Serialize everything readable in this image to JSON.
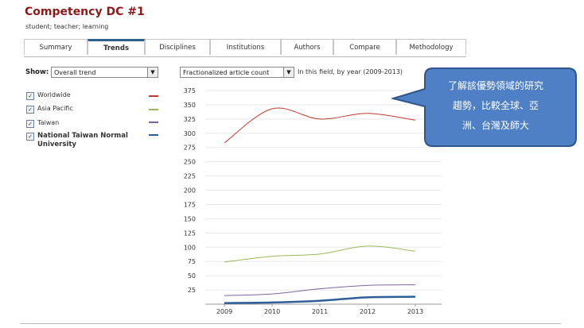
{
  "header": {
    "title": "Competency DC #1",
    "keywords": "student; teacher; learning"
  },
  "tabs": [
    {
      "label": "Summary"
    },
    {
      "label": "Trends"
    },
    {
      "label": "Disciplines"
    },
    {
      "label": "Institutions"
    },
    {
      "label": "Authors"
    },
    {
      "label": "Compare"
    },
    {
      "label": "Methodology"
    }
  ],
  "controls": {
    "show_label": "Show:",
    "show_value": "Overall trend",
    "metric_value": "Fractionalized article count",
    "subtitle": "In this field, by year (2009-2013)"
  },
  "legend": [
    {
      "label": "Worldwide",
      "color": "#c0392b",
      "checked": "✓"
    },
    {
      "label": "Asia Pacific",
      "color": "#9aba59",
      "checked": "✓"
    },
    {
      "label": "Taiwan",
      "color": "#8064a2",
      "checked": "✓"
    },
    {
      "label": "National Taiwan Normal University",
      "color": "#2e5f9a",
      "checked": "✓"
    }
  ],
  "callout": {
    "line1": "了解該優勢領域的研究",
    "line2": "趨勢，比較全球、亞",
    "line3": "洲、台灣及師大",
    "fill": "#4f7fc4"
  },
  "chart_data": {
    "type": "line",
    "x": [
      "2009",
      "2010",
      "2011",
      "2012",
      "2013"
    ],
    "ylim": [
      0,
      375
    ],
    "yticks": [
      25,
      50,
      75,
      100,
      125,
      150,
      175,
      200,
      225,
      250,
      275,
      300,
      325,
      350,
      375
    ],
    "series": [
      {
        "name": "Worldwide",
        "color": "#c0392b",
        "width": 1,
        "values": [
          283,
          343,
          325,
          335,
          323
        ]
      },
      {
        "name": "Asia Pacific",
        "color": "#9aba59",
        "width": 1,
        "values": [
          74,
          84,
          88,
          102,
          93
        ]
      },
      {
        "name": "Taiwan",
        "color": "#8064a2",
        "width": 1,
        "values": [
          15,
          18,
          27,
          33,
          34
        ]
      },
      {
        "name": "National Taiwan Normal University",
        "color": "#2e5f9a",
        "width": 2.5,
        "values": [
          2,
          3,
          6,
          12,
          13
        ]
      }
    ]
  }
}
